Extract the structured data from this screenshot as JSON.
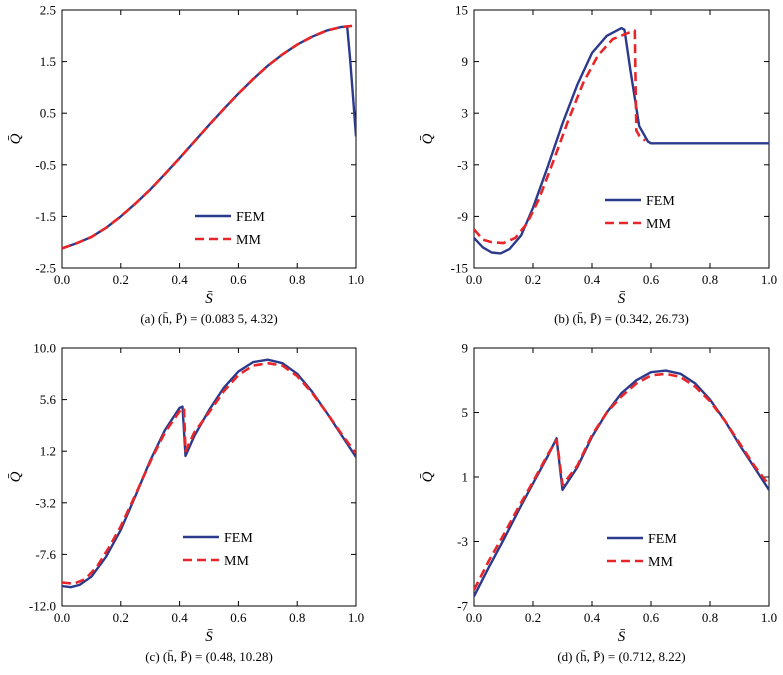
{
  "colors": {
    "fem": "#2b3a8c",
    "mm": "#e8262a"
  },
  "chart_data": [
    {
      "id": "a",
      "type": "line",
      "caption": "(a) (h̄, P̄) = (0.083 5, 4.32)",
      "xlabel": "S̄",
      "ylabel": "Q̄",
      "xlim": [
        0,
        1
      ],
      "ylim": [
        -2.5,
        2.5
      ],
      "xticks": [
        "0.0",
        "0.2",
        "0.4",
        "0.6",
        "0.8",
        "1.0"
      ],
      "yticks": [
        "-2.5",
        "-1.5",
        "-0.5",
        "0.5",
        "1.5",
        "2.5"
      ],
      "legend": {
        "position": "lower-center",
        "entries": [
          "FEM",
          "MM"
        ]
      },
      "series": [
        {
          "name": "FEM",
          "style": "solid",
          "x": [
            0,
            0.05,
            0.1,
            0.15,
            0.2,
            0.25,
            0.3,
            0.35,
            0.4,
            0.45,
            0.5,
            0.55,
            0.6,
            0.65,
            0.7,
            0.75,
            0.8,
            0.85,
            0.9,
            0.95,
            0.97,
            0.98,
            0.99,
            1.0
          ],
          "y": [
            -2.12,
            -2.02,
            -1.9,
            -1.72,
            -1.5,
            -1.25,
            -0.98,
            -0.68,
            -0.37,
            -0.05,
            0.27,
            0.58,
            0.88,
            1.16,
            1.42,
            1.64,
            1.83,
            1.98,
            2.1,
            2.17,
            2.18,
            1.55,
            0.8,
            0.05
          ]
        },
        {
          "name": "MM",
          "style": "dashed",
          "x": [
            0,
            0.05,
            0.1,
            0.15,
            0.2,
            0.25,
            0.3,
            0.35,
            0.4,
            0.45,
            0.5,
            0.55,
            0.6,
            0.65,
            0.7,
            0.75,
            0.8,
            0.85,
            0.9,
            0.95,
            1.0
          ],
          "y": [
            -2.12,
            -2.02,
            -1.9,
            -1.72,
            -1.5,
            -1.25,
            -0.98,
            -0.68,
            -0.37,
            -0.05,
            0.27,
            0.58,
            0.88,
            1.16,
            1.42,
            1.64,
            1.83,
            1.98,
            2.1,
            2.17,
            2.2
          ]
        }
      ]
    },
    {
      "id": "b",
      "type": "line",
      "caption": "(b) (h̄, P̄) = (0.342, 26.73)",
      "xlabel": "S̄",
      "ylabel": "Q̄",
      "xlim": [
        0,
        1
      ],
      "ylim": [
        -15,
        15
      ],
      "xticks": [
        "0.0",
        "0.2",
        "0.4",
        "0.6",
        "0.8",
        "1.0"
      ],
      "yticks": [
        "-15",
        "-9",
        "-3",
        "3",
        "9",
        "15"
      ],
      "legend": {
        "position": "center-right",
        "entries": [
          "FEM",
          "MM"
        ]
      },
      "series": [
        {
          "name": "FEM",
          "style": "solid",
          "x": [
            0,
            0.03,
            0.06,
            0.09,
            0.12,
            0.16,
            0.2,
            0.25,
            0.3,
            0.35,
            0.4,
            0.45,
            0.5,
            0.51,
            0.53,
            0.56,
            0.59,
            0.6,
            0.7,
            0.8,
            0.9,
            1.0
          ],
          "y": [
            -11.5,
            -12.6,
            -13.2,
            -13.3,
            -12.8,
            -11.2,
            -8.0,
            -3.2,
            1.8,
            6.3,
            10.0,
            12.0,
            12.9,
            12.7,
            8.0,
            1.5,
            -0.3,
            -0.5,
            -0.5,
            -0.5,
            -0.5,
            -0.5
          ]
        },
        {
          "name": "MM",
          "style": "dashed",
          "x": [
            0,
            0.03,
            0.06,
            0.1,
            0.14,
            0.18,
            0.22,
            0.27,
            0.32,
            0.37,
            0.42,
            0.47,
            0.52,
            0.545,
            0.55,
            0.56,
            0.58
          ],
          "y": [
            -10.5,
            -11.7,
            -12.0,
            -12.1,
            -11.5,
            -9.8,
            -7.0,
            -2.5,
            2.2,
            6.5,
            9.7,
            11.6,
            12.3,
            12.6,
            1.0,
            0.4,
            -0.2
          ]
        }
      ]
    },
    {
      "id": "c",
      "type": "line",
      "caption": "(c) (h̄, P̄) = (0.48, 10.28)",
      "xlabel": "S̄",
      "ylabel": "Q̄",
      "xlim": [
        0,
        1
      ],
      "ylim": [
        -12,
        10
      ],
      "xticks": [
        "0.0",
        "0.2",
        "0.4",
        "0.6",
        "0.8",
        "1.0"
      ],
      "yticks": [
        "-12.0",
        "-7.6",
        "-3.2",
        "1.2",
        "5.6",
        "10.0"
      ],
      "legend": {
        "position": "lower-center",
        "entries": [
          "FEM",
          "MM"
        ]
      },
      "series": [
        {
          "name": "FEM",
          "style": "solid",
          "x": [
            0,
            0.03,
            0.06,
            0.1,
            0.15,
            0.2,
            0.25,
            0.3,
            0.35,
            0.4,
            0.41,
            0.42,
            0.45,
            0.5,
            0.55,
            0.6,
            0.65,
            0.7,
            0.75,
            0.8,
            0.85,
            0.9,
            0.95,
            1.0
          ],
          "y": [
            -10.3,
            -10.4,
            -10.2,
            -9.5,
            -7.8,
            -5.5,
            -2.6,
            0.4,
            3.0,
            4.9,
            5.0,
            0.8,
            2.5,
            4.7,
            6.6,
            8.0,
            8.8,
            9.0,
            8.7,
            7.8,
            6.3,
            4.5,
            2.6,
            0.7
          ]
        },
        {
          "name": "MM",
          "style": "dashed",
          "x": [
            0,
            0.04,
            0.08,
            0.12,
            0.16,
            0.2,
            0.25,
            0.3,
            0.35,
            0.4,
            0.415,
            0.42,
            0.45,
            0.5,
            0.55,
            0.6,
            0.65,
            0.7,
            0.75,
            0.8,
            0.85,
            0.9,
            0.95,
            1.0
          ],
          "y": [
            -10.0,
            -10.1,
            -9.7,
            -8.6,
            -7.0,
            -5.2,
            -2.5,
            0.3,
            2.8,
            4.6,
            4.9,
            1.2,
            2.8,
            4.5,
            6.3,
            7.7,
            8.5,
            8.7,
            8.5,
            7.6,
            6.2,
            4.5,
            2.7,
            1.0
          ]
        }
      ]
    },
    {
      "id": "d",
      "type": "line",
      "caption": "(d) (h̄, P̄) = (0.712, 8.22)",
      "xlabel": "S̄",
      "ylabel": "Q̄",
      "xlim": [
        0,
        1
      ],
      "ylim": [
        -7,
        9
      ],
      "xticks": [
        "0.0",
        "0.2",
        "0.4",
        "0.6",
        "0.8",
        "1.0"
      ],
      "yticks": [
        "-7",
        "-3",
        "1",
        "5",
        "9"
      ],
      "legend": {
        "position": "lower-center",
        "entries": [
          "FEM",
          "MM"
        ]
      },
      "series": [
        {
          "name": "FEM",
          "style": "solid",
          "x": [
            0,
            0.05,
            0.1,
            0.15,
            0.2,
            0.25,
            0.28,
            0.29,
            0.3,
            0.35,
            0.4,
            0.45,
            0.5,
            0.55,
            0.6,
            0.65,
            0.7,
            0.75,
            0.8,
            0.85,
            0.9,
            0.95,
            1.0
          ],
          "y": [
            -6.4,
            -4.6,
            -2.9,
            -1.1,
            0.6,
            2.3,
            3.4,
            1.8,
            0.2,
            1.6,
            3.5,
            5.0,
            6.2,
            7.0,
            7.5,
            7.6,
            7.4,
            6.8,
            5.8,
            4.5,
            3.0,
            1.6,
            0.2
          ]
        },
        {
          "name": "MM",
          "style": "dashed",
          "x": [
            0,
            0.05,
            0.1,
            0.15,
            0.2,
            0.25,
            0.28,
            0.29,
            0.3,
            0.35,
            0.4,
            0.45,
            0.5,
            0.55,
            0.6,
            0.65,
            0.7,
            0.75,
            0.8,
            0.85,
            0.9,
            0.95,
            1.0
          ],
          "y": [
            -6.0,
            -4.2,
            -2.6,
            -0.9,
            0.7,
            2.4,
            3.3,
            2.0,
            0.5,
            1.7,
            3.6,
            5.0,
            6.0,
            6.8,
            7.3,
            7.4,
            7.2,
            6.6,
            5.7,
            4.5,
            3.1,
            1.7,
            0.5
          ]
        }
      ]
    }
  ]
}
